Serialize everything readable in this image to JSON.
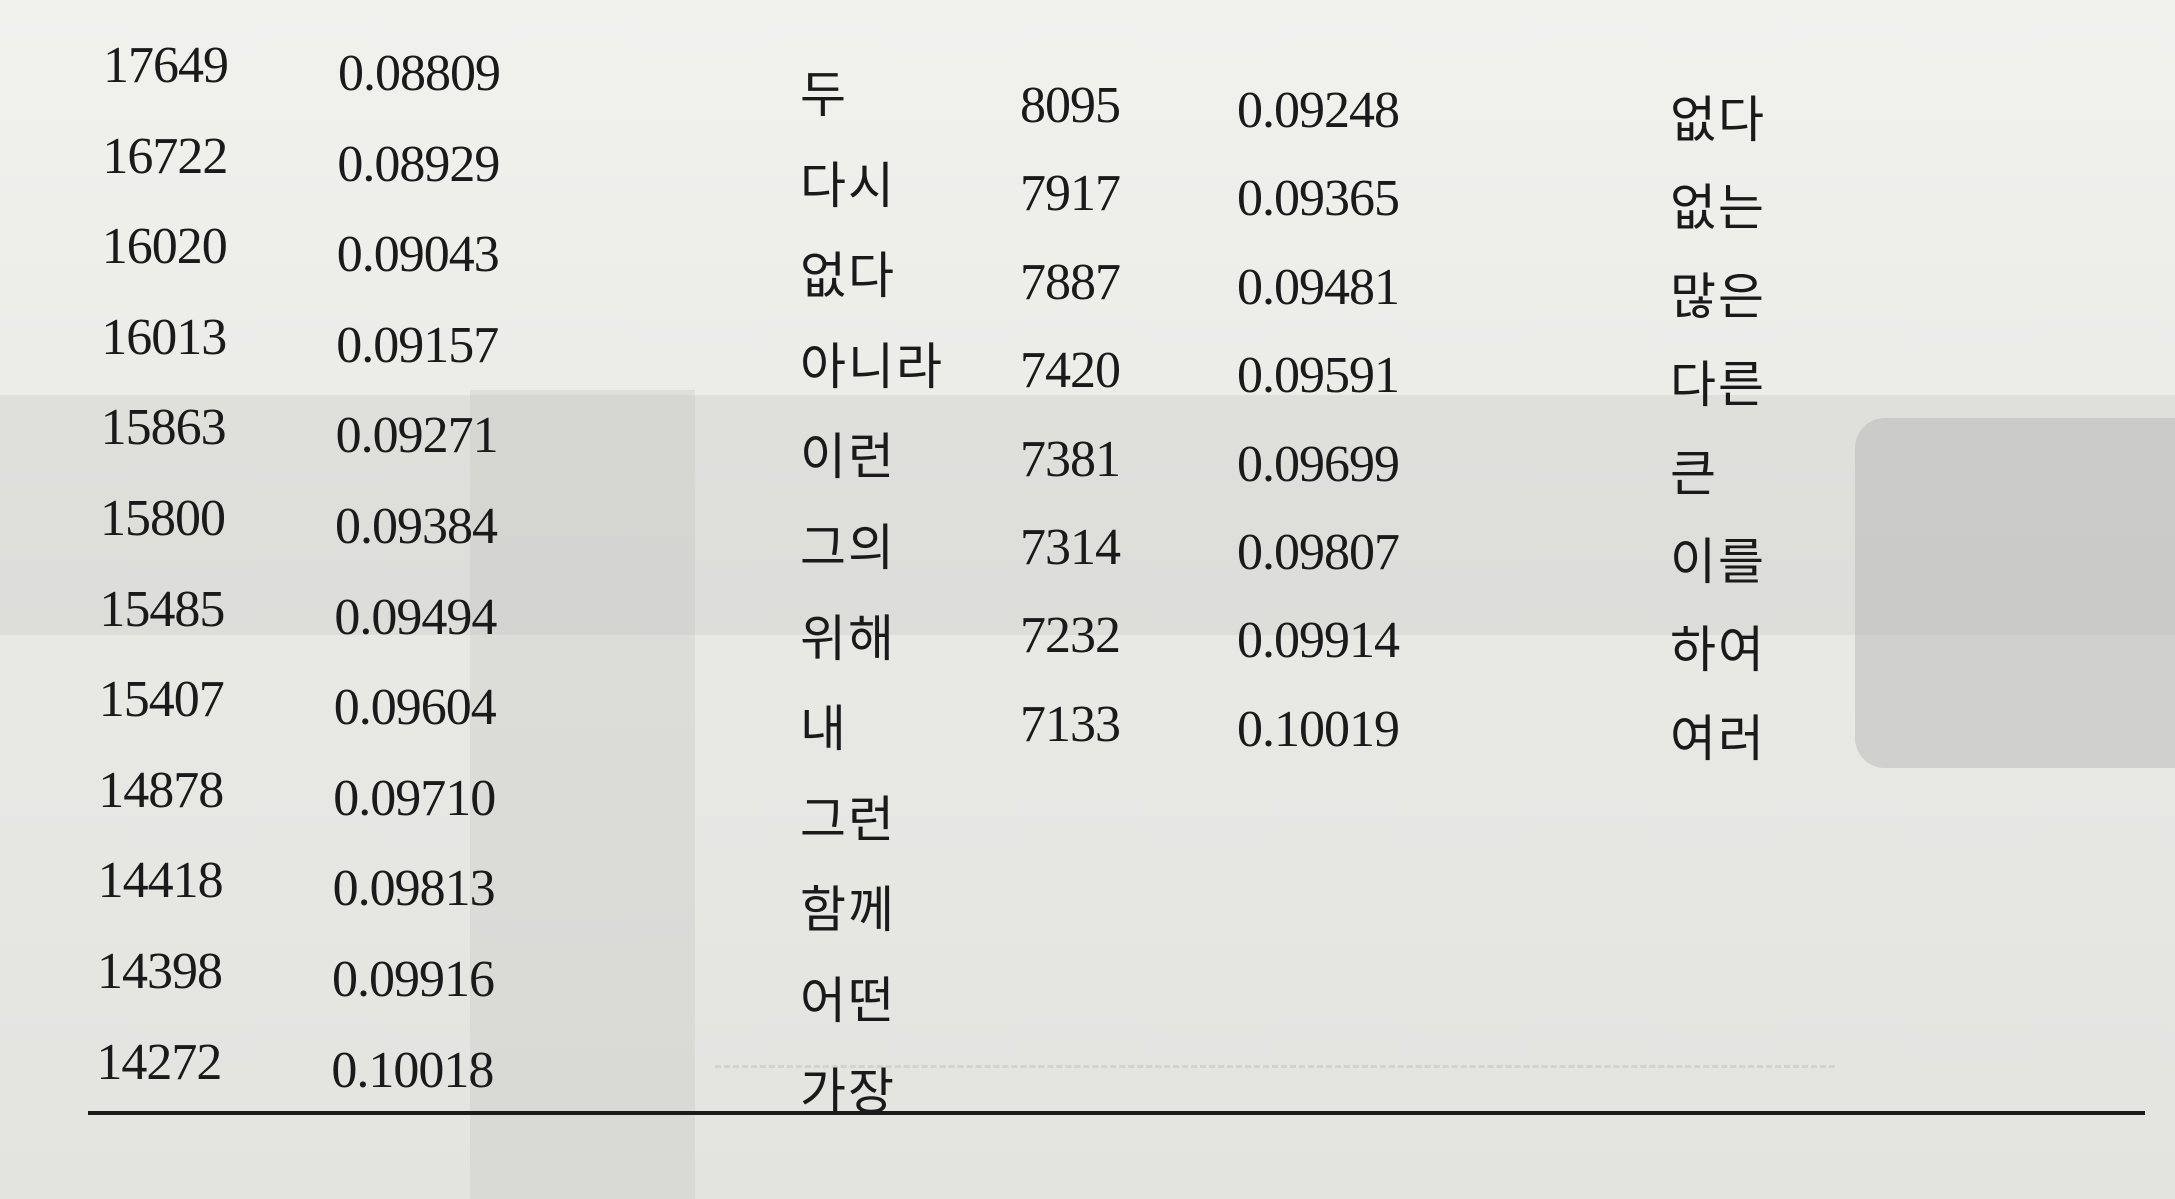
{
  "table": {
    "left_rows": [
      {
        "freq": "17649",
        "ratio": "0.08809",
        "word": "두"
      },
      {
        "freq": "16722",
        "ratio": "0.08929",
        "word": "다시"
      },
      {
        "freq": "16020",
        "ratio": "0.09043",
        "word": "없다"
      },
      {
        "freq": "16013",
        "ratio": "0.09157",
        "word": "아니라"
      },
      {
        "freq": "15863",
        "ratio": "0.09271",
        "word": "이런"
      },
      {
        "freq": "15800",
        "ratio": "0.09384",
        "word": "그의"
      },
      {
        "freq": "15485",
        "ratio": "0.09494",
        "word": "위해"
      },
      {
        "freq": "15407",
        "ratio": "0.09604",
        "word": "내"
      },
      {
        "freq": "14878",
        "ratio": "0.09710",
        "word": "그런"
      },
      {
        "freq": "14418",
        "ratio": "0.09813",
        "word": "함께"
      },
      {
        "freq": "14398",
        "ratio": "0.09916",
        "word": "어떤"
      },
      {
        "freq": "14272",
        "ratio": "0.10018",
        "word": "가장"
      }
    ],
    "right_rows": [
      {
        "freq": "8095",
        "ratio": "0.09248",
        "word": "없다"
      },
      {
        "freq": "7917",
        "ratio": "0.09365",
        "word": "없는"
      },
      {
        "freq": "7887",
        "ratio": "0.09481",
        "word": "많은"
      },
      {
        "freq": "7420",
        "ratio": "0.09591",
        "word": "다른"
      },
      {
        "freq": "7381",
        "ratio": "0.09699",
        "word": "큰"
      },
      {
        "freq": "7314",
        "ratio": "0.09807",
        "word": "이를"
      },
      {
        "freq": "7232",
        "ratio": "0.09914",
        "word": "하여"
      },
      {
        "freq": "7133",
        "ratio": "0.10019",
        "word": "여러"
      }
    ]
  }
}
